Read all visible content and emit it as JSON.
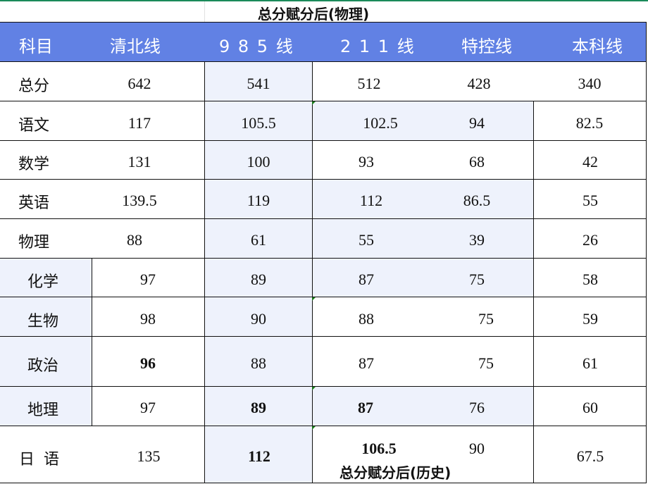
{
  "title": "总分赋分后(物理)",
  "bottom_note": "总分赋分后(历史)",
  "colors": {
    "header_bg": "#6181e4",
    "shade": "#eef2fc",
    "top_line": "#1a8a5a"
  },
  "headers": [
    "科目",
    "清北线",
    "9 8 5 线",
    "2 1 1 线",
    "特控线",
    "本科线"
  ],
  "rows": [
    {
      "subject": "总分",
      "values": [
        "642",
        "541",
        "512",
        "428",
        "340"
      ]
    },
    {
      "subject": "语文",
      "values": [
        "117",
        "105.5",
        "102.5",
        "94",
        "82.5"
      ]
    },
    {
      "subject": "数学",
      "values": [
        "131",
        "100",
        "93",
        "68",
        "42"
      ]
    },
    {
      "subject": "英语",
      "values": [
        "139.5",
        "119",
        "112",
        "86.5",
        "55"
      ]
    },
    {
      "subject": "物理",
      "values": [
        "88",
        "61",
        "55",
        "39",
        "26"
      ]
    },
    {
      "subject": "化学",
      "values": [
        "97",
        "89",
        "87",
        "75",
        "58"
      ]
    },
    {
      "subject": "生物",
      "values": [
        "98",
        "90",
        "88",
        "75",
        "59"
      ]
    },
    {
      "subject": "政治",
      "values": [
        "96",
        "88",
        "87",
        "75",
        "61"
      ]
    },
    {
      "subject": "地理",
      "values": [
        "97",
        "89",
        "87",
        "76",
        "60"
      ]
    },
    {
      "subject": "日 语",
      "values": [
        "135",
        "112",
        "106.5",
        "90",
        "67.5"
      ]
    }
  ]
}
